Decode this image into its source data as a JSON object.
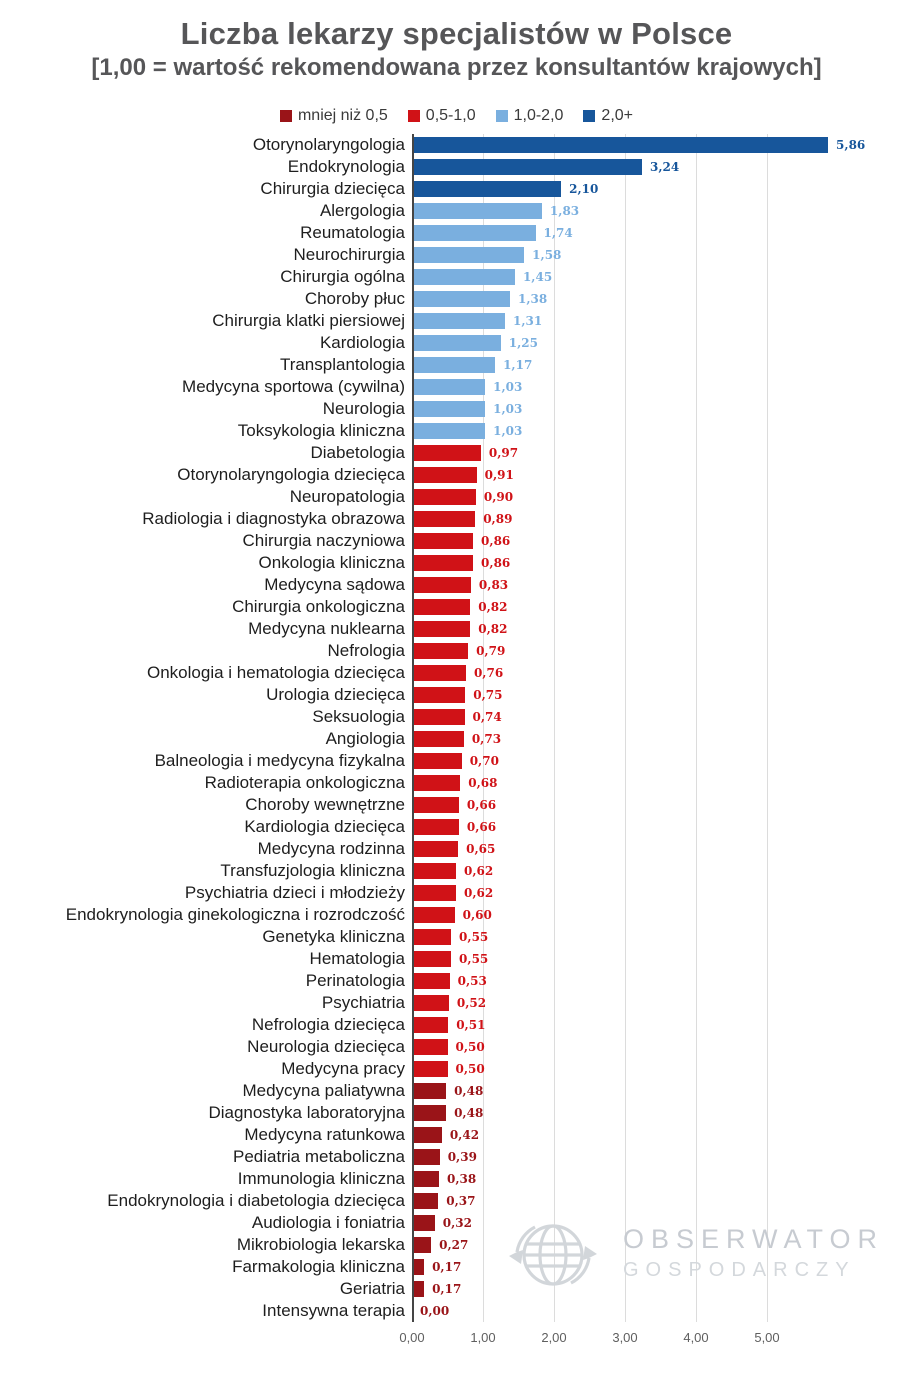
{
  "header": {
    "title": "Liczba lekarzy specjalistów w Polsce",
    "subtitle": "[1,00 = wartość rekomendowana przez konsultantów krajowych]"
  },
  "legend": {
    "items": [
      {
        "label": "mniej niż 0,5",
        "group": "lt05"
      },
      {
        "label": "0,5-1,0",
        "group": "r0510"
      },
      {
        "label": "1,0-2,0",
        "group": "b1020"
      },
      {
        "label": "2,0+",
        "group": "b20"
      }
    ]
  },
  "colors": {
    "lt05": "#9a1418",
    "r0510": "#d01217",
    "b1020": "#7aafdf",
    "b20": "#17569b",
    "grid": "#dcdcdc",
    "axis": "#454545",
    "title": "#565658",
    "category_label": "#1e1e1e",
    "tick": "#5f5f5f",
    "watermark": "#c7cbd1"
  },
  "chart_data": {
    "type": "bar",
    "orientation": "horizontal",
    "title": "Liczba lekarzy specjalistów w Polsce",
    "subtitle": "[1,00 = wartość rekomendowana przez konsultantów krajowych]",
    "xlabel": "",
    "ylabel": "",
    "xlim": [
      0,
      5.9
    ],
    "x_ticks": [
      "0,00",
      "1,00",
      "2,00",
      "3,00",
      "4,00",
      "5,00"
    ],
    "grid": true,
    "legend_position": "top",
    "legend_labels": [
      "mniej niż 0,5",
      "0,5-1,0",
      "1,0-2,0",
      "2,0+"
    ],
    "items": [
      {
        "label": "Otorynolaryngologia",
        "value": 5.86,
        "display": "5,86",
        "group": "b20"
      },
      {
        "label": "Endokrynologia",
        "value": 3.24,
        "display": "3,24",
        "group": "b20"
      },
      {
        "label": "Chirurgia dziecięca",
        "value": 2.1,
        "display": "2,10",
        "group": "b20"
      },
      {
        "label": "Alergologia",
        "value": 1.83,
        "display": "1,83",
        "group": "b1020"
      },
      {
        "label": "Reumatologia",
        "value": 1.74,
        "display": "1,74",
        "group": "b1020"
      },
      {
        "label": "Neurochirurgia",
        "value": 1.58,
        "display": "1,58",
        "group": "b1020"
      },
      {
        "label": "Chirurgia ogólna",
        "value": 1.45,
        "display": "1,45",
        "group": "b1020"
      },
      {
        "label": "Choroby płuc",
        "value": 1.38,
        "display": "1,38",
        "group": "b1020"
      },
      {
        "label": "Chirurgia klatki piersiowej",
        "value": 1.31,
        "display": "1,31",
        "group": "b1020"
      },
      {
        "label": "Kardiologia",
        "value": 1.25,
        "display": "1,25",
        "group": "b1020"
      },
      {
        "label": "Transplantologia",
        "value": 1.17,
        "display": "1,17",
        "group": "b1020"
      },
      {
        "label": "Medycyna sportowa (cywilna)",
        "value": 1.03,
        "display": "1,03",
        "group": "b1020"
      },
      {
        "label": "Neurologia",
        "value": 1.03,
        "display": "1,03",
        "group": "b1020"
      },
      {
        "label": "Toksykologia kliniczna",
        "value": 1.03,
        "display": "1,03",
        "group": "b1020"
      },
      {
        "label": "Diabetologia",
        "value": 0.97,
        "display": "0,97",
        "group": "r0510"
      },
      {
        "label": "Otorynolaryngologia dziecięca",
        "value": 0.91,
        "display": "0,91",
        "group": "r0510"
      },
      {
        "label": "Neuropatologia",
        "value": 0.9,
        "display": "0,90",
        "group": "r0510"
      },
      {
        "label": "Radiologia i diagnostyka obrazowa",
        "value": 0.89,
        "display": "0,89",
        "group": "r0510"
      },
      {
        "label": "Chirurgia naczyniowa",
        "value": 0.86,
        "display": "0,86",
        "group": "r0510"
      },
      {
        "label": "Onkologia kliniczna",
        "value": 0.86,
        "display": "0,86",
        "group": "r0510"
      },
      {
        "label": "Medycyna sądowa",
        "value": 0.83,
        "display": "0,83",
        "group": "r0510"
      },
      {
        "label": "Chirurgia onkologiczna",
        "value": 0.82,
        "display": "0,82",
        "group": "r0510"
      },
      {
        "label": "Medycyna nuklearna",
        "value": 0.82,
        "display": "0,82",
        "group": "r0510"
      },
      {
        "label": "Nefrologia",
        "value": 0.79,
        "display": "0,79",
        "group": "r0510"
      },
      {
        "label": "Onkologia i hematologia dziecięca",
        "value": 0.76,
        "display": "0,76",
        "group": "r0510"
      },
      {
        "label": "Urologia dziecięca",
        "value": 0.75,
        "display": "0,75",
        "group": "r0510"
      },
      {
        "label": "Seksuologia",
        "value": 0.74,
        "display": "0,74",
        "group": "r0510"
      },
      {
        "label": "Angiologia",
        "value": 0.73,
        "display": "0,73",
        "group": "r0510"
      },
      {
        "label": "Balneologia i medycyna fizykalna",
        "value": 0.7,
        "display": "0,70",
        "group": "r0510"
      },
      {
        "label": "Radioterapia onkologiczna",
        "value": 0.68,
        "display": "0,68",
        "group": "r0510"
      },
      {
        "label": "Choroby wewnętrzne",
        "value": 0.66,
        "display": "0,66",
        "group": "r0510"
      },
      {
        "label": "Kardiologia dziecięca",
        "value": 0.66,
        "display": "0,66",
        "group": "r0510"
      },
      {
        "label": "Medycyna rodzinna",
        "value": 0.65,
        "display": "0,65",
        "group": "r0510"
      },
      {
        "label": "Transfuzjologia kliniczna",
        "value": 0.62,
        "display": "0,62",
        "group": "r0510"
      },
      {
        "label": "Psychiatria dzieci i młodzieży",
        "value": 0.62,
        "display": "0,62",
        "group": "r0510"
      },
      {
        "label": "Endokrynologia ginekologiczna i rozrodczość",
        "value": 0.6,
        "display": "0,60",
        "group": "r0510"
      },
      {
        "label": "Genetyka kliniczna",
        "value": 0.55,
        "display": "0,55",
        "group": "r0510"
      },
      {
        "label": "Hematologia",
        "value": 0.55,
        "display": "0,55",
        "group": "r0510"
      },
      {
        "label": "Perinatologia",
        "value": 0.53,
        "display": "0,53",
        "group": "r0510"
      },
      {
        "label": "Psychiatria",
        "value": 0.52,
        "display": "0,52",
        "group": "r0510"
      },
      {
        "label": "Nefrologia dziecięca",
        "value": 0.51,
        "display": "0,51",
        "group": "r0510"
      },
      {
        "label": "Neurologia dziecięca",
        "value": 0.5,
        "display": "0,50",
        "group": "r0510"
      },
      {
        "label": "Medycyna pracy",
        "value": 0.5,
        "display": "0,50",
        "group": "r0510"
      },
      {
        "label": "Medycyna paliatywna",
        "value": 0.48,
        "display": "0,48",
        "group": "lt05"
      },
      {
        "label": "Diagnostyka laboratoryjna",
        "value": 0.48,
        "display": "0,48",
        "group": "lt05"
      },
      {
        "label": "Medycyna ratunkowa",
        "value": 0.42,
        "display": "0,42",
        "group": "lt05"
      },
      {
        "label": "Pediatria metaboliczna",
        "value": 0.39,
        "display": "0,39",
        "group": "lt05"
      },
      {
        "label": "Immunologia kliniczna",
        "value": 0.38,
        "display": "0,38",
        "group": "lt05"
      },
      {
        "label": "Endokrynologia i diabetologia dziecięca",
        "value": 0.37,
        "display": "0,37",
        "group": "lt05"
      },
      {
        "label": "Audiologia i foniatria",
        "value": 0.32,
        "display": "0,32",
        "group": "lt05"
      },
      {
        "label": "Mikrobiologia lekarska",
        "value": 0.27,
        "display": "0,27",
        "group": "lt05"
      },
      {
        "label": "Farmakologia kliniczna",
        "value": 0.17,
        "display": "0,17",
        "group": "lt05"
      },
      {
        "label": "Geriatria",
        "value": 0.17,
        "display": "0,17",
        "group": "lt05"
      },
      {
        "label": "Intensywna terapia",
        "value": 0.0,
        "display": "0,00",
        "group": "lt05"
      }
    ]
  },
  "watermark": {
    "line1": "OBSERWATOR",
    "line2": "GOSPODARCZY",
    "icon": "globe-arrows-icon"
  }
}
